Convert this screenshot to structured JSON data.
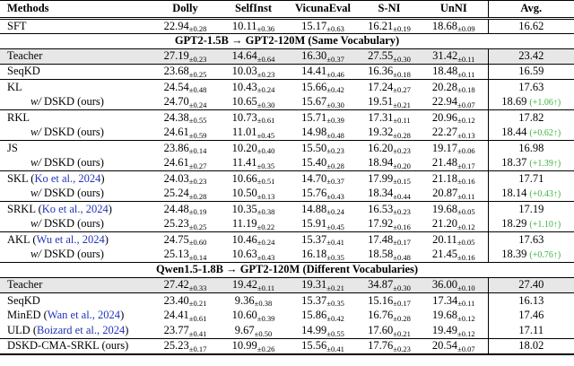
{
  "table": {
    "columns": [
      "Methods",
      "Dolly",
      "SelfInst",
      "VicunaEval",
      "S-NI",
      "UnNI",
      "Avg."
    ],
    "colors": {
      "citation_blue": "#2233bb",
      "delta_green": "#3cb53c",
      "teacher_row_bg": "#e7e7e7"
    },
    "rows": [
      {
        "kind": "data",
        "pre": "SFT",
        "bt": true,
        "cells": [
          [
            "22.94",
            "±0.28"
          ],
          [
            "10.11",
            "±0.36"
          ],
          [
            "15.17",
            "±0.63"
          ],
          [
            "16.21",
            "±0.19"
          ],
          [
            "18.68",
            "±0.09"
          ]
        ],
        "avg": "16.62"
      },
      {
        "kind": "section",
        "label": "GPT2-1.5B → GPT2-120M (Same Vocabulary)",
        "bt": true
      },
      {
        "kind": "data",
        "pre": "Teacher",
        "bt": true,
        "shaded": true,
        "cells": [
          [
            "27.19",
            "±0.23"
          ],
          [
            "14.64",
            "±0.64"
          ],
          [
            "16.30",
            "±0.37"
          ],
          [
            "27.55",
            "±0.30"
          ],
          [
            "31.42",
            "±0.11"
          ]
        ],
        "avg": "23.42"
      },
      {
        "kind": "data",
        "pre": "SeqKD",
        "bt": true,
        "cells": [
          [
            "23.68",
            "±0.25"
          ],
          [
            "10.03",
            "±0.23"
          ],
          [
            "14.41",
            "±0.46"
          ],
          [
            "16.36",
            "±0.18"
          ],
          [
            "18.48",
            "±0.11"
          ]
        ],
        "avg": "16.59"
      },
      {
        "kind": "data",
        "pre": "KL",
        "bt": true,
        "cells": [
          [
            "24.54",
            "±0.48"
          ],
          [
            "10.43",
            "±0.24"
          ],
          [
            "15.66",
            "±0.42"
          ],
          [
            "17.24",
            "±0.27"
          ],
          [
            "20.28",
            "±0.18"
          ]
        ],
        "avg": "17.63"
      },
      {
        "kind": "data",
        "it": "w/",
        "pre": " DSKD (ours)",
        "indent": true,
        "cells": [
          [
            "24.70",
            "±0.24"
          ],
          [
            "10.65",
            "±0.30"
          ],
          [
            "15.67",
            "±0.30"
          ],
          [
            "19.51",
            "±0.21"
          ],
          [
            "22.94",
            "±0.07"
          ]
        ],
        "avg": "18.69",
        "delta": "(+1.06↑)"
      },
      {
        "kind": "data",
        "pre": "RKL",
        "bt": true,
        "cells": [
          [
            "24.38",
            "±0.55"
          ],
          [
            "10.73",
            "±0.61"
          ],
          [
            "15.71",
            "±0.39"
          ],
          [
            "17.31",
            "±0.11"
          ],
          [
            "20.96",
            "±0.12"
          ]
        ],
        "avg": "17.82"
      },
      {
        "kind": "data",
        "it": "w/",
        "pre": " DSKD (ours)",
        "indent": true,
        "cells": [
          [
            "24.61",
            "±0.59"
          ],
          [
            "11.01",
            "±0.45"
          ],
          [
            "14.98",
            "±0.48"
          ],
          [
            "19.32",
            "±0.28"
          ],
          [
            "22.27",
            "±0.13"
          ]
        ],
        "avg": "18.44",
        "delta": "(+0.62↑)"
      },
      {
        "kind": "data",
        "pre": "JS",
        "bt": true,
        "cells": [
          [
            "23.86",
            "±0.14"
          ],
          [
            "10.20",
            "±0.40"
          ],
          [
            "15.50",
            "±0.23"
          ],
          [
            "16.20",
            "±0.23"
          ],
          [
            "19.17",
            "±0.06"
          ]
        ],
        "avg": "16.98"
      },
      {
        "kind": "data",
        "it": "w/",
        "pre": " DSKD (ours)",
        "indent": true,
        "cells": [
          [
            "24.61",
            "±0.27"
          ],
          [
            "11.41",
            "±0.35"
          ],
          [
            "15.40",
            "±0.28"
          ],
          [
            "18.94",
            "±0.20"
          ],
          [
            "21.48",
            "±0.17"
          ]
        ],
        "avg": "18.37",
        "delta": "(+1.39↑)"
      },
      {
        "kind": "data",
        "pre": "SKL (",
        "cite": "Ko et al., 2024",
        "post": ")",
        "bt": true,
        "cells": [
          [
            "24.03",
            "±0.23"
          ],
          [
            "10.66",
            "±0.51"
          ],
          [
            "14.70",
            "±0.37"
          ],
          [
            "17.99",
            "±0.15"
          ],
          [
            "21.18",
            "±0.16"
          ]
        ],
        "avg": "17.71"
      },
      {
        "kind": "data",
        "it": "w/",
        "pre": " DSKD (ours)",
        "indent": true,
        "cells": [
          [
            "25.24",
            "±0.28"
          ],
          [
            "10.50",
            "±0.13"
          ],
          [
            "15.76",
            "±0.43"
          ],
          [
            "18.34",
            "±0.44"
          ],
          [
            "20.87",
            "±0.11"
          ]
        ],
        "avg": "18.14",
        "delta": "(+0.43↑)"
      },
      {
        "kind": "data",
        "pre": "SRKL (",
        "cite": "Ko et al., 2024",
        "post": ")",
        "bt": true,
        "cells": [
          [
            "24.48",
            "±0.19"
          ],
          [
            "10.35",
            "±0.38"
          ],
          [
            "14.88",
            "±0.24"
          ],
          [
            "16.53",
            "±0.23"
          ],
          [
            "19.68",
            "±0.05"
          ]
        ],
        "avg": "17.19"
      },
      {
        "kind": "data",
        "it": "w/",
        "pre": " DSKD (ours)",
        "indent": true,
        "cells": [
          [
            "25.23",
            "±0.25"
          ],
          [
            "11.19",
            "±0.22"
          ],
          [
            "15.91",
            "±0.45"
          ],
          [
            "17.92",
            "±0.16"
          ],
          [
            "21.20",
            "±0.12"
          ]
        ],
        "avg": "18.29",
        "delta": "(+1.10↑)"
      },
      {
        "kind": "data",
        "pre": "AKL (",
        "cite": "Wu et al., 2024",
        "post": ")",
        "bt": true,
        "cells": [
          [
            "24.75",
            "±0.60"
          ],
          [
            "10.46",
            "±0.24"
          ],
          [
            "15.37",
            "±0.41"
          ],
          [
            "17.48",
            "±0.17"
          ],
          [
            "20.11",
            "±0.05"
          ]
        ],
        "avg": "17.63"
      },
      {
        "kind": "data",
        "it": "w/",
        "pre": " DSKD (ours)",
        "indent": true,
        "cells": [
          [
            "25.13",
            "±0.14"
          ],
          [
            "10.63",
            "±0.43"
          ],
          [
            "16.18",
            "±0.35"
          ],
          [
            "18.58",
            "±0.48"
          ],
          [
            "21.45",
            "±0.16"
          ]
        ],
        "avg": "18.39",
        "delta": "(+0.76↑)"
      },
      {
        "kind": "section",
        "label": "Qwen1.5-1.8B → GPT2-120M (Different Vocabularies)",
        "bt": true
      },
      {
        "kind": "data",
        "pre": "Teacher",
        "bt": true,
        "shaded": true,
        "cells": [
          [
            "27.42",
            "±0.33"
          ],
          [
            "19.42",
            "±0.11"
          ],
          [
            "19.31",
            "±0.21"
          ],
          [
            "34.87",
            "±0.30"
          ],
          [
            "36.00",
            "±0.10"
          ]
        ],
        "avg": "27.40"
      },
      {
        "kind": "data",
        "pre": "SeqKD",
        "bt": true,
        "cells": [
          [
            "23.40",
            "±0.21"
          ],
          [
            "9.36",
            "±0.38"
          ],
          [
            "15.37",
            "±0.35"
          ],
          [
            "15.16",
            "±0.17"
          ],
          [
            "17.34",
            "±0.11"
          ]
        ],
        "avg": "16.13"
      },
      {
        "kind": "data",
        "pre": "MinED (",
        "cite": "Wan et al., 2024",
        "post": ")",
        "cells": [
          [
            "24.41",
            "±0.61"
          ],
          [
            "10.60",
            "±0.39"
          ],
          [
            "15.86",
            "±0.42"
          ],
          [
            "16.76",
            "±0.28"
          ],
          [
            "19.68",
            "±0.12"
          ]
        ],
        "avg": "17.46"
      },
      {
        "kind": "data",
        "pre": "ULD (",
        "cite": "Boizard et al., 2024",
        "post": ")",
        "cells": [
          [
            "23.77",
            "±0.41"
          ],
          [
            "9.67",
            "±0.50"
          ],
          [
            "14.99",
            "±0.55"
          ],
          [
            "17.60",
            "±0.21"
          ],
          [
            "19.49",
            "±0.12"
          ]
        ],
        "avg": "17.11"
      },
      {
        "kind": "data",
        "pre": "DSKD-CMA-SRKL (ours)",
        "bt": true,
        "cells": [
          [
            "25.23",
            "±0.17"
          ],
          [
            "10.99",
            "±0.26"
          ],
          [
            "15.56",
            "±0.41"
          ],
          [
            "17.76",
            "±0.23"
          ],
          [
            "20.54",
            "±0.07"
          ]
        ],
        "avg": "18.02"
      }
    ]
  }
}
